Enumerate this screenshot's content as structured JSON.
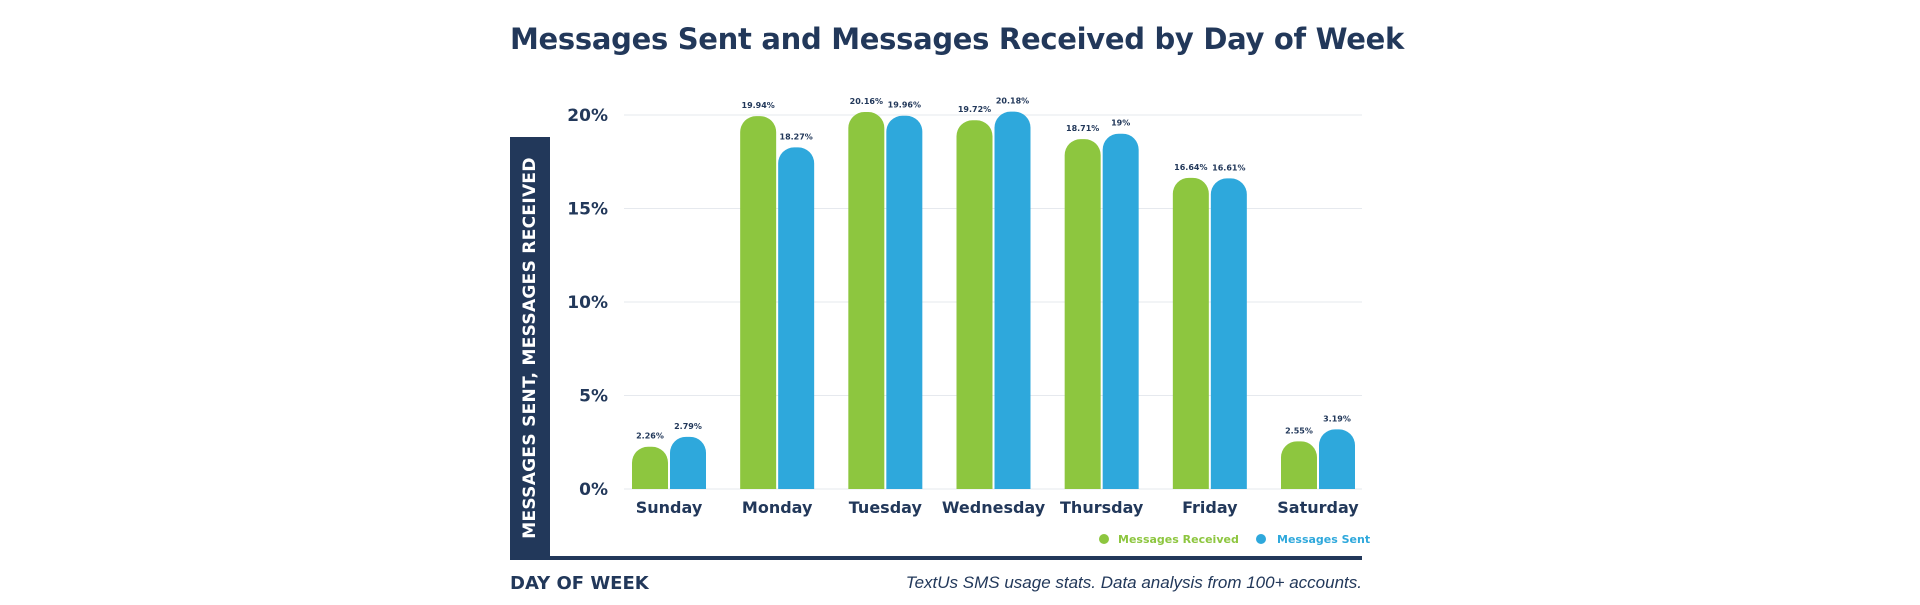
{
  "title": "Messages Sent and Messages Received by Day of Week",
  "footnote": "TextUs SMS usage stats. Data analysis from 100+ accounts.",
  "chart_data": {
    "type": "bar",
    "title": "Messages Sent and Messages Received by Day of Week",
    "xlabel": "DAY OF WEEK",
    "ylabel": "MESSAGES SENT, MESSAGES RECEIVED",
    "categories": [
      "Sunday",
      "Monday",
      "Tuesday",
      "Wednesday",
      "Thursday",
      "Friday",
      "Saturday"
    ],
    "series": [
      {
        "name": "Messages Received",
        "color": "#8dc63f",
        "values": [
          2.26,
          19.94,
          20.16,
          19.72,
          18.71,
          16.64,
          2.55
        ],
        "labels": [
          "2.26%",
          "19.94%",
          "20.16%",
          "19.72%",
          "18.71%",
          "16.64%",
          "2.55%"
        ]
      },
      {
        "name": "Messages Sent",
        "color": "#2ea8dc",
        "values": [
          2.79,
          18.27,
          19.96,
          20.18,
          19,
          16.61,
          3.19
        ],
        "labels": [
          "2.79%",
          "18.27%",
          "19.96%",
          "20.18%",
          "19%",
          "16.61%",
          "3.19%"
        ]
      }
    ],
    "yticks": [
      0,
      5,
      10,
      15,
      20
    ],
    "ytick_labels": [
      "0%",
      "5%",
      "10%",
      "15%",
      "20%"
    ],
    "ylim": [
      0,
      20
    ],
    "grid": true,
    "legend": "bottom-right"
  }
}
